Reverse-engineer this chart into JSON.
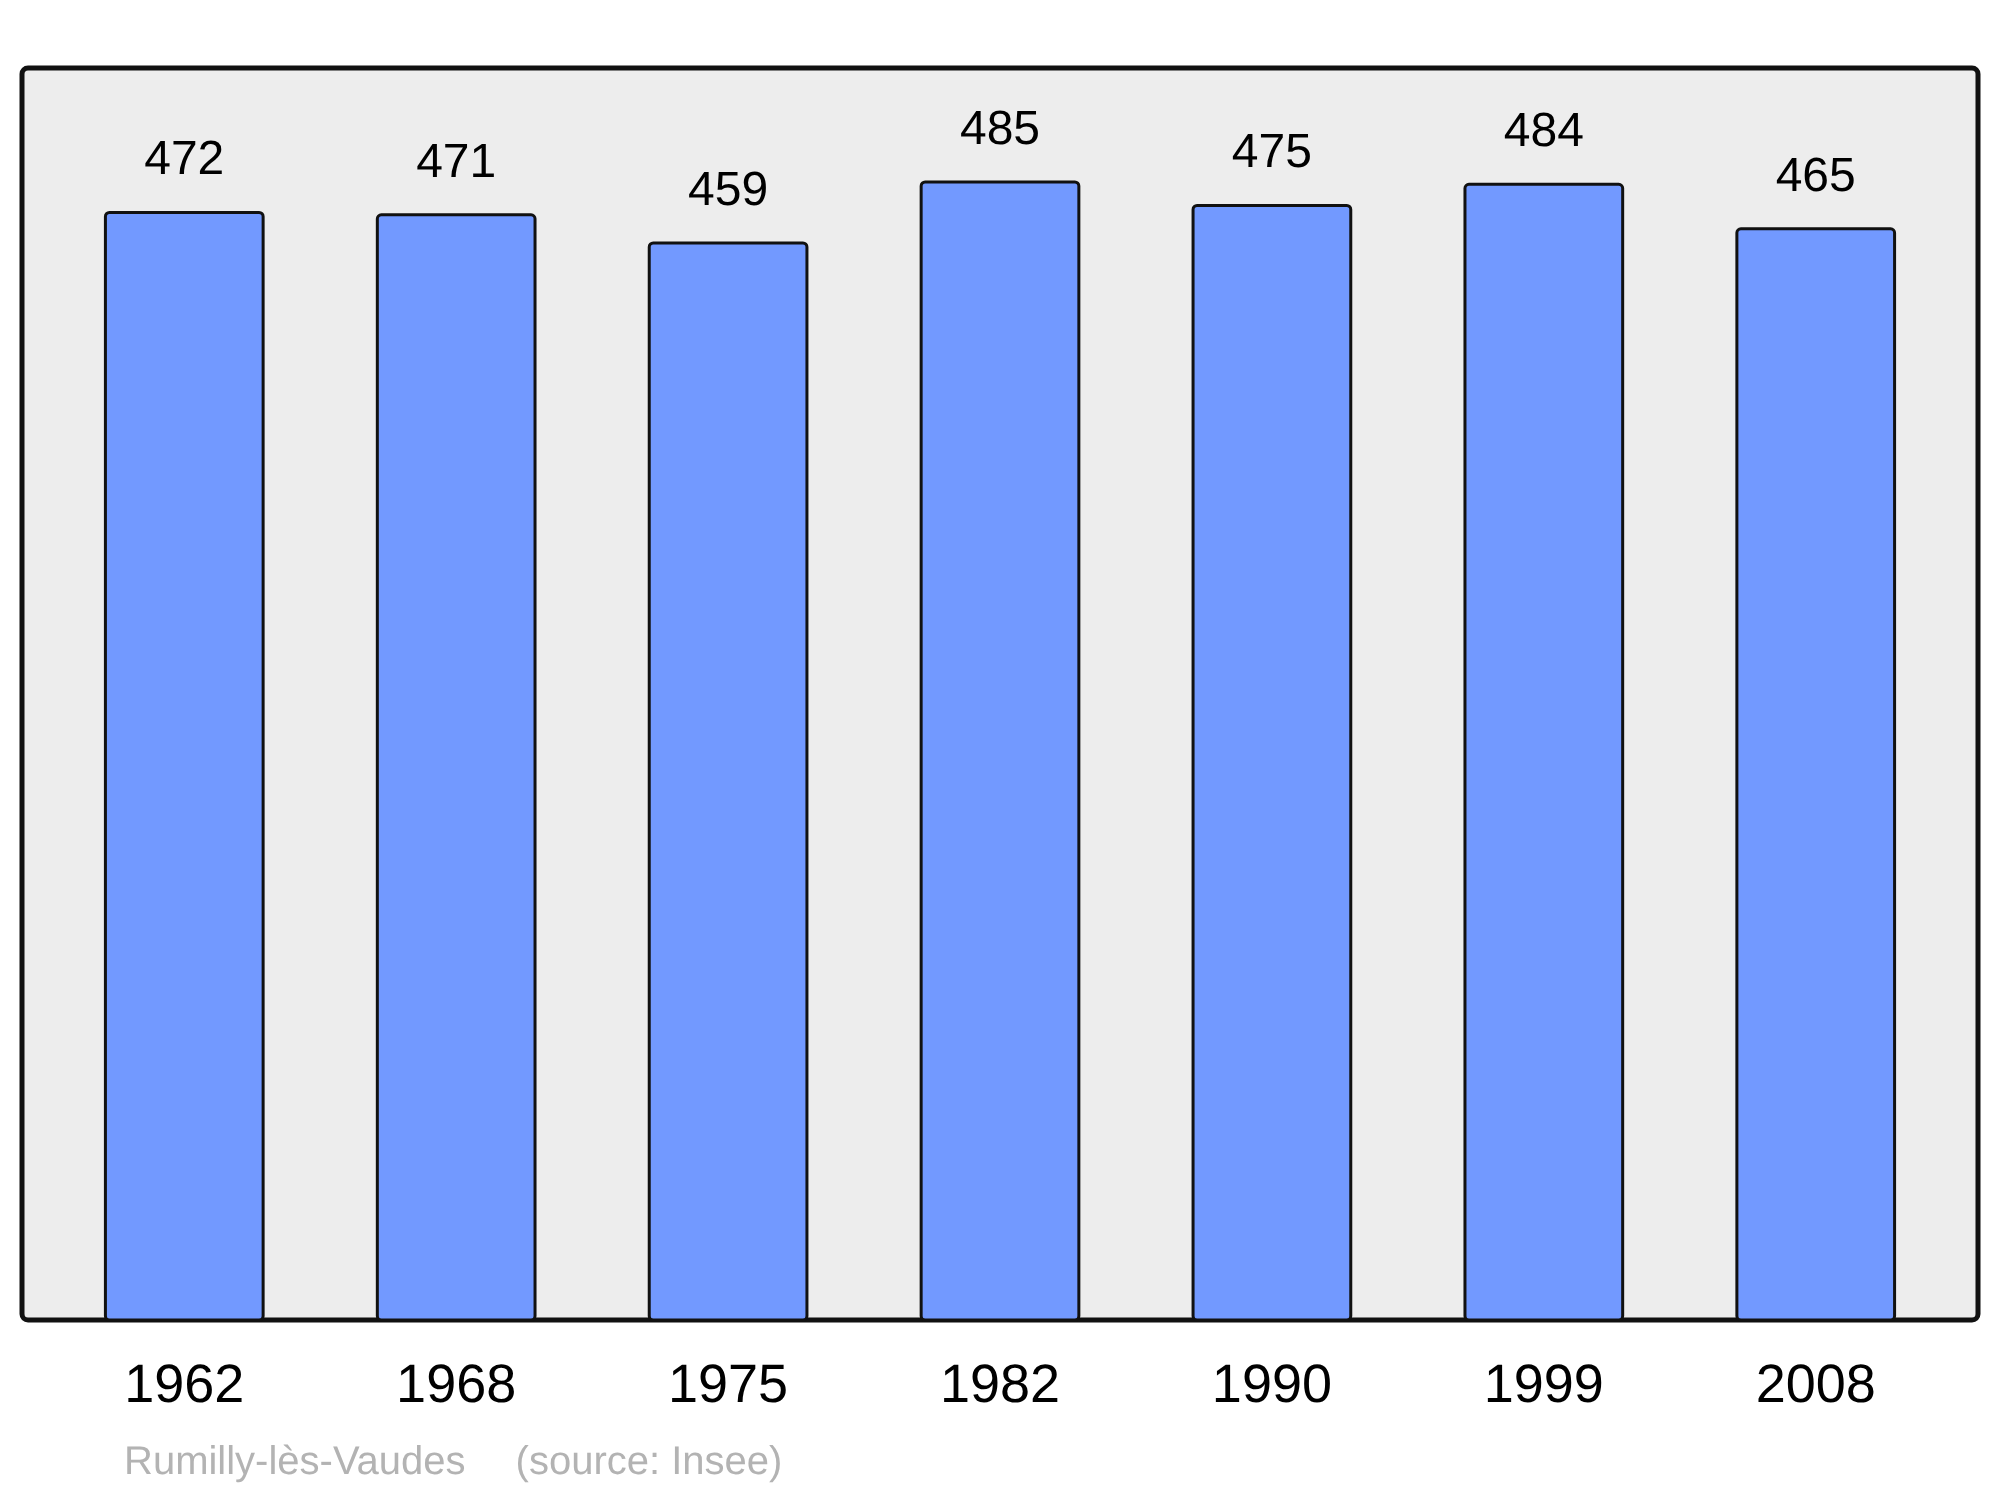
{
  "chart_data": {
    "type": "bar",
    "categories": [
      "1962",
      "1968",
      "1975",
      "1982",
      "1990",
      "1999",
      "2008"
    ],
    "values": [
      472,
      471,
      459,
      485,
      475,
      484,
      465
    ],
    "color": "#7299ff",
    "data_labels": true,
    "annotations": [
      "Rumilly-lès-Vaudes",
      "(source: Insee)"
    ]
  }
}
